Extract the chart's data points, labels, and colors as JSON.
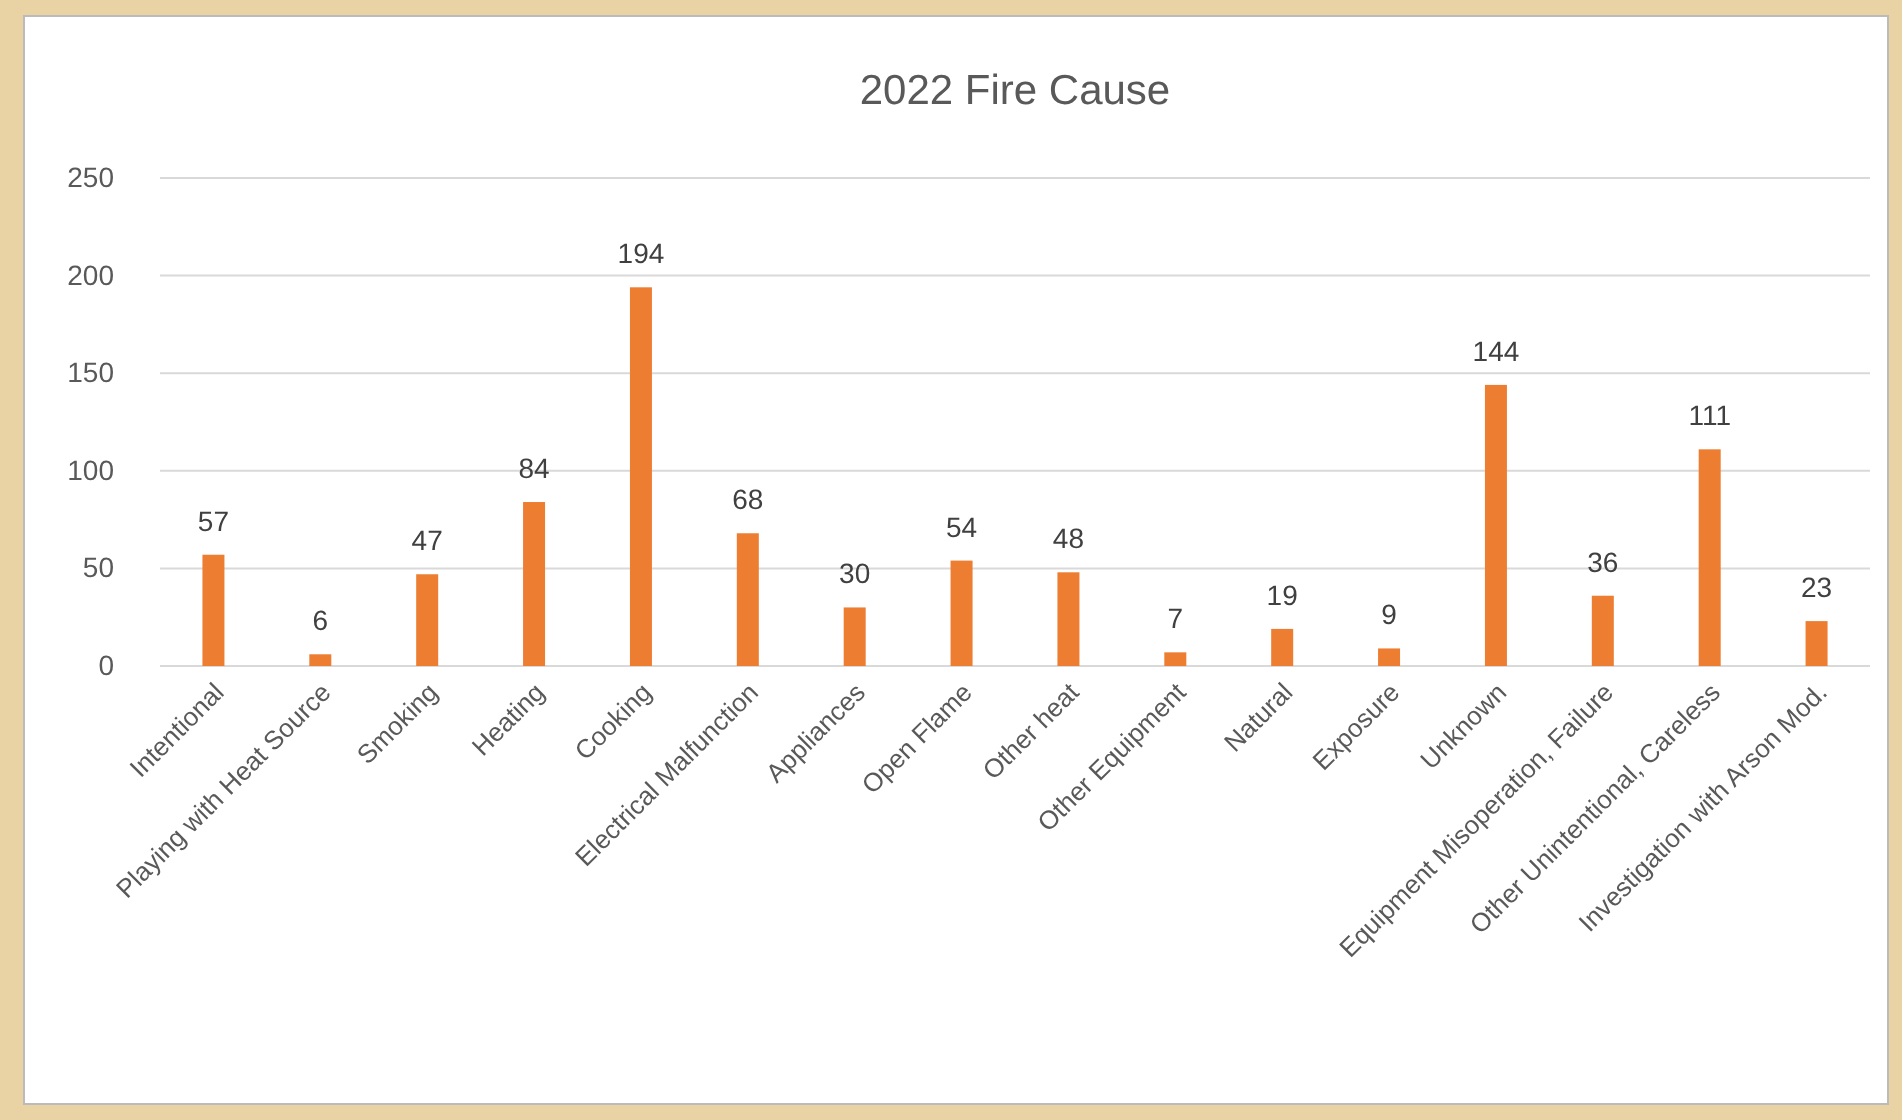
{
  "chart_data": {
    "type": "bar",
    "title": "2022 Fire Cause",
    "categories": [
      "Intentional",
      "Playing with Heat Source",
      "Smoking",
      "Heating",
      "Cooking",
      "Electrical Malfunction",
      "Appliances",
      "Open Flame",
      "Other heat",
      "Other Equipment",
      "Natural",
      "Exposure",
      "Unknown",
      "Equipment Misoperation, Failure",
      "Other Unintentional, Careless",
      "Investigation with Arson Mod."
    ],
    "values": [
      57,
      6,
      47,
      84,
      194,
      68,
      30,
      54,
      48,
      7,
      19,
      9,
      144,
      36,
      111,
      23
    ],
    "color": "#ed7d31",
    "ylim": [
      0,
      250
    ],
    "yticks": [
      0,
      50,
      100,
      150,
      200,
      250
    ],
    "grid": "y",
    "data_labels": true
  }
}
